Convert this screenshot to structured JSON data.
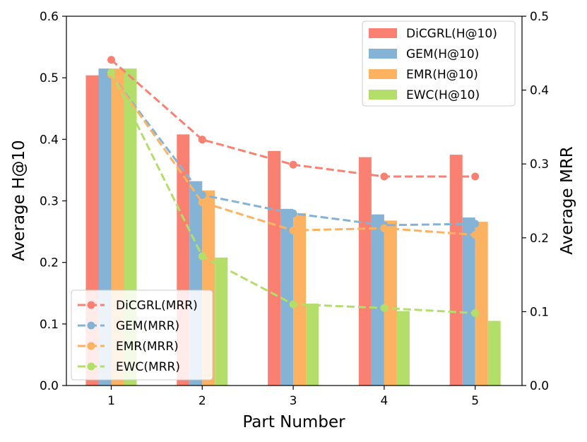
{
  "chart_data": {
    "type": "bar+line",
    "categories": [
      "1",
      "2",
      "3",
      "4",
      "5"
    ],
    "xlabel": "Part Number",
    "ylabel_left": "Average H@10",
    "ylabel_right": "Average MRR",
    "ylim_left": [
      0.0,
      0.6
    ],
    "ylim_right": [
      0.0,
      0.5
    ],
    "yticks_left": [
      "0.0",
      "0.1",
      "0.2",
      "0.3",
      "0.4",
      "0.5",
      "0.6"
    ],
    "yticks_right": [
      "0.0",
      "0.1",
      "0.2",
      "0.3",
      "0.4",
      "0.5"
    ],
    "bar_series": [
      {
        "name": "DiCGRL(H@10)",
        "color": "#fa8072",
        "values": [
          0.504,
          0.408,
          0.381,
          0.371,
          0.375
        ]
      },
      {
        "name": "GEM(H@10)",
        "color": "#84b3d6",
        "values": [
          0.515,
          0.332,
          0.287,
          0.278,
          0.273
        ]
      },
      {
        "name": "EMR(H@10)",
        "color": "#fcb260",
        "values": [
          0.515,
          0.317,
          0.28,
          0.268,
          0.266
        ]
      },
      {
        "name": "EWC(H@10)",
        "color": "#b3de69",
        "values": [
          0.515,
          0.208,
          0.133,
          0.121,
          0.105
        ]
      }
    ],
    "line_series": [
      {
        "name": "DiCGRL(MRR)",
        "color": "#fa8072",
        "values": [
          0.441,
          0.333,
          0.299,
          0.283,
          0.283
        ]
      },
      {
        "name": "GEM(MRR)",
        "color": "#84b3d6",
        "values": [
          0.421,
          0.258,
          0.233,
          0.217,
          0.219
        ]
      },
      {
        "name": "EMR(MRR)",
        "color": "#fcb260",
        "values": [
          0.421,
          0.248,
          0.21,
          0.213,
          0.204
        ]
      },
      {
        "name": "EWC(MRR)",
        "color": "#b3de69",
        "values": [
          0.424,
          0.175,
          0.11,
          0.105,
          0.098
        ]
      }
    ],
    "legend_bars_position": "top-right",
    "legend_lines_position": "bottom-left",
    "grid": false
  }
}
